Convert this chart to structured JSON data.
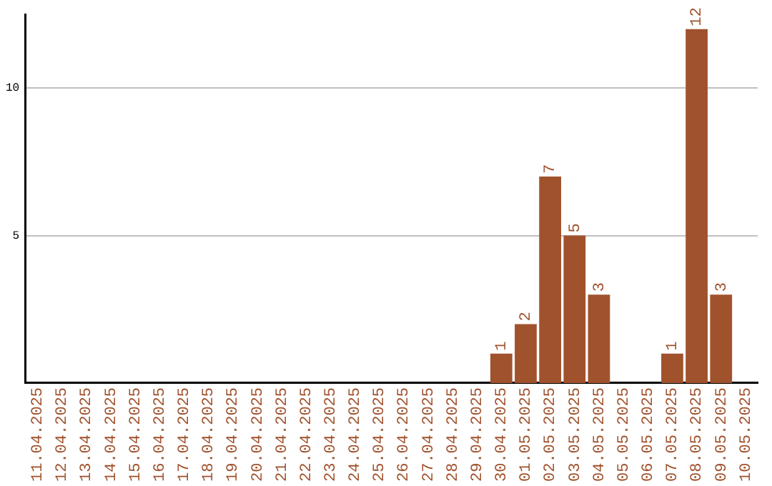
{
  "chart_data": {
    "type": "bar",
    "categories": [
      "11.04.2025",
      "12.04.2025",
      "13.04.2025",
      "14.04.2025",
      "15.04.2025",
      "16.04.2025",
      "17.04.2025",
      "18.04.2025",
      "19.04.2025",
      "20.04.2025",
      "21.04.2025",
      "22.04.2025",
      "23.04.2025",
      "24.04.2025",
      "25.04.2025",
      "26.04.2025",
      "27.04.2025",
      "28.04.2025",
      "29.04.2025",
      "30.04.2025",
      "01.05.2025",
      "02.05.2025",
      "03.05.2025",
      "04.05.2025",
      "05.05.2025",
      "06.05.2025",
      "07.05.2025",
      "08.05.2025",
      "09.05.2025",
      "10.05.2025"
    ],
    "values": [
      0,
      0,
      0,
      0,
      0,
      0,
      0,
      0,
      0,
      0,
      0,
      0,
      0,
      0,
      0,
      0,
      0,
      0,
      0,
      1,
      2,
      7,
      5,
      3,
      0,
      0,
      1,
      12,
      3,
      0
    ],
    "value_labels": [
      null,
      null,
      null,
      null,
      null,
      null,
      null,
      null,
      null,
      null,
      null,
      null,
      null,
      null,
      null,
      null,
      null,
      null,
      null,
      "1",
      "2",
      "7",
      "5",
      "3",
      null,
      null,
      "1",
      "12",
      "3",
      null
    ],
    "color": "#a0522d",
    "ylim": [
      0,
      12.5
    ],
    "yticks": [
      5,
      10
    ],
    "grid": "y"
  }
}
